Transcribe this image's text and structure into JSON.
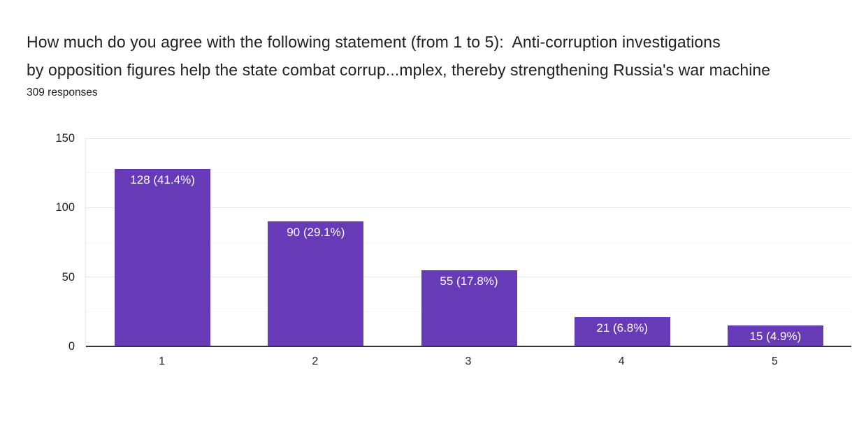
{
  "header": {
    "title_line1": "How much do you agree with the following statement (from 1 to 5):  Anti-corruption investigations",
    "title_line2": "by opposition figures help the state combat corrup...mplex, thereby strengthening Russia's war machine",
    "responses_count": "309 responses"
  },
  "chart_data": {
    "type": "bar",
    "title": "How much do you agree with the following statement (from 1 to 5):  Anti-corruption investigations by opposition figures help the state combat corrup...mplex, thereby strengthening Russia's war machine",
    "subtitle": "309 responses",
    "total_responses": 309,
    "categories": [
      "1",
      "2",
      "3",
      "4",
      "5"
    ],
    "values": [
      128,
      90,
      55,
      21,
      15
    ],
    "percentages": [
      41.4,
      29.1,
      17.8,
      6.8,
      4.9
    ],
    "bar_labels": [
      "128 (41.4%)",
      "90 (29.1%)",
      "55 (17.8%)",
      "21 (6.8%)",
      "15 (4.9%)"
    ],
    "xlabel": "",
    "ylabel": "",
    "ylim": [
      0,
      150
    ],
    "yticks": [
      0,
      50,
      100,
      150
    ],
    "yticks_minor": [
      25,
      75,
      125
    ],
    "grid": true,
    "legend": "none",
    "colors": {
      "bar": "#673ab7",
      "bar_label_text": "#ffffff",
      "axis_line": "#333333",
      "grid_major": "#e6e6e6",
      "grid_minor": "#f4f4f4",
      "text": "#212121"
    }
  }
}
